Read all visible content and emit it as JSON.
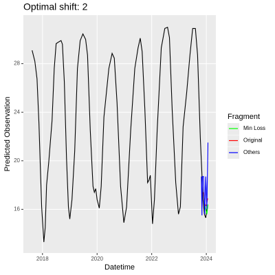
{
  "chart_data": {
    "type": "line",
    "title": "Optimal shift: 2",
    "x_label": "Datetime",
    "y_label": "Predicted Observation",
    "xlim": [
      2017.3,
      2024.35
    ],
    "ylim": [
      12.4,
      32.0
    ],
    "xticks": [
      2018,
      2020,
      2022,
      2024
    ],
    "yticks": [
      16,
      20,
      24,
      28
    ],
    "grid": true,
    "legend_title": "Fragment",
    "legend_position": "right",
    "series": [
      {
        "color": "#000000",
        "x": [
          2017.62,
          2017.72,
          2017.8,
          2017.87,
          2017.92,
          2017.97,
          2018.03,
          2018.05,
          2018.1,
          2018.15,
          2018.23,
          2018.35,
          2018.43,
          2018.5,
          2018.6,
          2018.68,
          2018.73,
          2018.8,
          2018.88,
          2018.95,
          2019.0,
          2019.08,
          2019.18,
          2019.28,
          2019.38,
          2019.48,
          2019.58,
          2019.65,
          2019.75,
          2019.85,
          2019.9,
          2019.95,
          2020.0,
          2020.08,
          2020.15,
          2020.25,
          2020.43,
          2020.55,
          2020.63,
          2020.73,
          2020.86,
          2020.98,
          2021.08,
          2021.23,
          2021.38,
          2021.5,
          2021.58,
          2021.65,
          2021.75,
          2021.85,
          2021.9,
          2021.95,
          2022.03,
          2022.1,
          2022.2,
          2022.35,
          2022.48,
          2022.58,
          2022.65,
          2022.75,
          2022.88,
          2022.98,
          2023.05,
          2023.15,
          2023.28,
          2023.4,
          2023.5,
          2023.6,
          2023.68,
          2023.78,
          2023.88,
          2023.93,
          2023.98,
          2024.03
        ],
        "values": [
          29.1,
          28.2,
          26.75,
          23.1,
          19.6,
          16.2,
          14.0,
          13.3,
          14.5,
          18.0,
          19.9,
          23.3,
          27.6,
          29.65,
          29.8,
          29.9,
          29.6,
          26.5,
          20.2,
          16.2,
          15.2,
          16.8,
          20.8,
          27.6,
          29.9,
          30.45,
          30.0,
          28.7,
          22.5,
          17.9,
          17.4,
          17.7,
          16.8,
          16.1,
          17.9,
          23.6,
          27.6,
          28.85,
          28.45,
          24.8,
          17.9,
          14.9,
          16.2,
          22.5,
          27.6,
          29.3,
          30.1,
          29.0,
          24.2,
          18.2,
          18.4,
          18.8,
          14.8,
          16.8,
          22.5,
          29.3,
          30.9,
          31.0,
          30.15,
          24.2,
          18.2,
          15.6,
          16.2,
          22.8,
          25.6,
          28.7,
          30.9,
          30.9,
          28.7,
          21.9,
          16.8,
          15.6,
          15.3,
          16.2
        ]
      },
      {
        "name": "Min Loss",
        "color": "#00ff00",
        "x": [
          2023.92,
          2023.97,
          2024.02,
          2024.06
        ],
        "values": [
          17.0,
          16.1,
          15.6,
          16.4
        ]
      },
      {
        "name": "Original",
        "color": "#ff0000",
        "x": [
          2023.9,
          2023.95,
          2024.0,
          2024.05
        ],
        "values": [
          17.4,
          16.4,
          16.3,
          16.9
        ]
      },
      {
        "name": "Others",
        "color": "#0000ff",
        "x": [
          2023.82,
          2023.84,
          2023.86,
          2023.9,
          2023.94,
          2023.98,
          2024.02,
          2024.06
        ],
        "values": [
          18.7,
          15.5,
          18.7,
          18.7,
          15.6,
          18.7,
          16.0,
          21.5
        ]
      }
    ]
  }
}
